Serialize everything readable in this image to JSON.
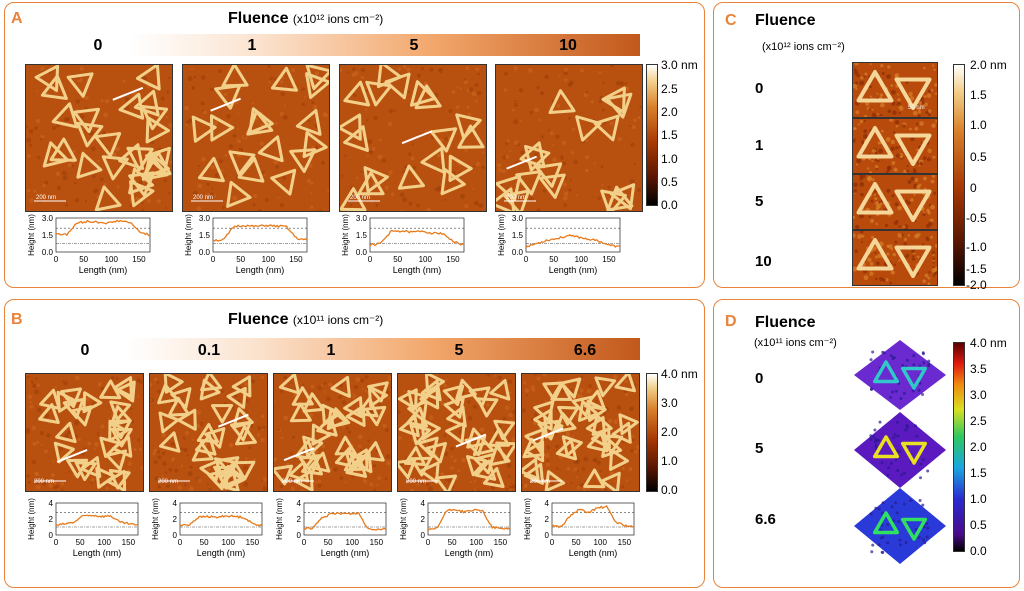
{
  "panels": {
    "A": {
      "label": "A",
      "title": "Fluence",
      "unit": "(x10¹² ions cm⁻²)",
      "fluences": [
        "0",
        "1",
        "5",
        "10"
      ],
      "colorbar": {
        "ticks": [
          "3.0 nm",
          "2.5",
          "2.0",
          "1.5",
          "1.0",
          "0.5",
          "0.0"
        ]
      },
      "scale_label": "200 nm",
      "profile": {
        "xlabel": "Length (nm)",
        "ylabel": "Height (nm)",
        "yticks": [
          "3.0",
          "1.5",
          "0.0"
        ],
        "xticks": [
          "0",
          "50",
          "100",
          "150"
        ]
      }
    },
    "B": {
      "label": "B",
      "title": "Fluence",
      "unit": "(x10¹¹ ions cm⁻²)",
      "fluences": [
        "0",
        "0.1",
        "1",
        "5",
        "6.6"
      ],
      "colorbar": {
        "ticks": [
          "4.0 nm",
          "3.0",
          "2.0",
          "1.0",
          "0.0"
        ]
      },
      "scale_label": "200 nm",
      "profile": {
        "xlabel": "Length (nm)",
        "ylabel": "Height (nm)",
        "yticks": [
          "4",
          "2",
          "0"
        ],
        "xticks": [
          "0",
          "50",
          "100",
          "150"
        ]
      }
    },
    "C": {
      "label": "C",
      "title": "Fluence",
      "unit": "(x10¹² ions cm⁻²)",
      "rows": [
        "0",
        "1",
        "5",
        "10"
      ],
      "colorbar": {
        "ticks": [
          "2.0 nm",
          "1.5",
          "1.0",
          "0.5",
          "0",
          "-0.5",
          "-1.0",
          "-1.5",
          "-2.0"
        ]
      },
      "scale_label": "50 nm"
    },
    "D": {
      "label": "D",
      "title": "Fluence",
      "unit": "(x10¹¹ ions cm⁻²)",
      "rows": [
        "0",
        "5",
        "6.6"
      ],
      "colorbar": {
        "ticks": [
          "4.0 nm",
          "3.5",
          "3.0",
          "2.5",
          "2.0",
          "1.5",
          "1.0",
          "0.5",
          "0.0"
        ]
      }
    }
  }
}
